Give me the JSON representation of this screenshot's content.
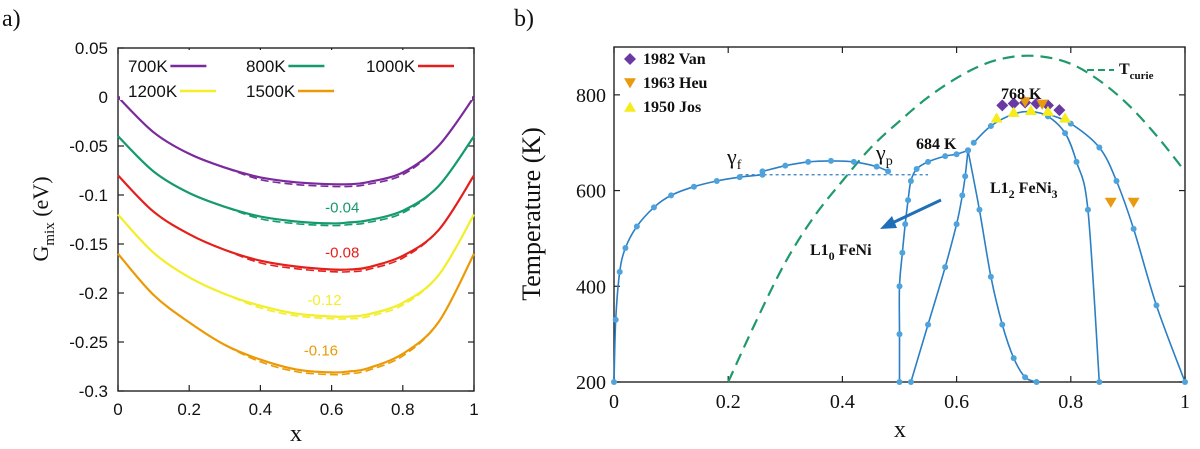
{
  "panels": {
    "a_label": "a)",
    "b_label": "b)"
  },
  "chart_data": [
    {
      "type": "line",
      "panel": "a",
      "xlabel": "x",
      "ylabel": "G",
      "ylabel_sub": "mix",
      "ylabel_unit": " (eV)",
      "xlim": [
        0,
        1
      ],
      "ylim": [
        -0.3,
        0.05
      ],
      "xticks": [
        0,
        0.2,
        0.4,
        0.6,
        0.8,
        1
      ],
      "xtick_labels": [
        "0",
        "0.2",
        "0.4",
        "0.6",
        "0.8",
        "1"
      ],
      "yticks": [
        0.05,
        0,
        -0.05,
        -0.1,
        -0.15,
        -0.2,
        -0.25,
        -0.3
      ],
      "ytick_labels": [
        "0.05",
        "0",
        "-0.05",
        "-0.1",
        "-0.15",
        "-0.2",
        "-0.25",
        "-0.3"
      ],
      "x": [
        0,
        0.1,
        0.2,
        0.3,
        0.4,
        0.5,
        0.6,
        0.65,
        0.7,
        0.8,
        0.9,
        1
      ],
      "series": [
        {
          "name": "700K",
          "color": "#7b2a9c",
          "offset": 0,
          "values": [
            0,
            -0.036,
            -0.058,
            -0.072,
            -0.082,
            -0.087,
            -0.089,
            -0.089,
            -0.087,
            -0.077,
            -0.05,
            0
          ]
        },
        {
          "name": "800K",
          "color": "#159a6e",
          "offset": -0.04,
          "values": [
            -0.04,
            -0.076,
            -0.098,
            -0.112,
            -0.122,
            -0.127,
            -0.129,
            -0.128,
            -0.126,
            -0.116,
            -0.091,
            -0.04
          ]
        },
        {
          "name": "1000K",
          "color": "#e4201c",
          "offset": -0.08,
          "values": [
            -0.08,
            -0.117,
            -0.14,
            -0.156,
            -0.167,
            -0.173,
            -0.176,
            -0.176,
            -0.174,
            -0.162,
            -0.136,
            -0.08
          ]
        },
        {
          "name": "1200K",
          "color": "#f2ee2a",
          "offset": -0.12,
          "values": [
            -0.12,
            -0.159,
            -0.184,
            -0.201,
            -0.213,
            -0.221,
            -0.224,
            -0.224,
            -0.222,
            -0.21,
            -0.182,
            -0.12
          ]
        },
        {
          "name": "1500K",
          "color": "#eb9a06",
          "offset": -0.16,
          "values": [
            -0.16,
            -0.202,
            -0.23,
            -0.253,
            -0.268,
            -0.278,
            -0.281,
            -0.28,
            -0.277,
            -0.262,
            -0.23,
            -0.16
          ]
        }
      ],
      "offset_labels": [
        {
          "text": "-0.04",
          "x": 0.63,
          "y": -0.118,
          "color": "#159a6e"
        },
        {
          "text": "-0.08",
          "x": 0.63,
          "y": -0.164,
          "color": "#e4201c"
        },
        {
          "text": "-0.12",
          "x": 0.58,
          "y": -0.212,
          "color": "#f2ee2a"
        },
        {
          "text": "-0.16",
          "x": 0.57,
          "y": -0.264,
          "color": "#eb9a06"
        }
      ],
      "legend_position": "top"
    },
    {
      "type": "line",
      "panel": "b",
      "xlabel": "x",
      "ylabel": "Temperature (K)",
      "xlim": [
        0,
        1
      ],
      "ylim": [
        200,
        900
      ],
      "xticks": [
        0,
        0.2,
        0.4,
        0.6,
        0.8,
        1
      ],
      "xtick_labels": [
        "0",
        "0.2",
        "0.4",
        "0.6",
        "0.8",
        "1"
      ],
      "yticks": [
        200,
        400,
        600,
        800
      ],
      "ytick_labels": [
        "200",
        "400",
        "600",
        "800"
      ],
      "line_color": "#2b7fc4",
      "curie_color": "#1f9a6a",
      "series": [
        {
          "name": "gamma_f boundary",
          "x": [
            0.0,
            0.003,
            0.01,
            0.02,
            0.04,
            0.07,
            0.1,
            0.14,
            0.18,
            0.22,
            0.26
          ],
          "y": [
            200,
            330,
            430,
            480,
            525,
            565,
            590,
            608,
            620,
            628,
            633
          ]
        },
        {
          "name": "miscibility dome",
          "x": [
            0.26,
            0.3,
            0.34,
            0.38,
            0.42,
            0.46,
            0.48
          ],
          "y": [
            640,
            652,
            660,
            662,
            660,
            650,
            640
          ]
        },
        {
          "name": "L1_0 left",
          "x": [
            0.5,
            0.5,
            0.5,
            0.505,
            0.51,
            0.515,
            0.52,
            0.53,
            0.55,
            0.58,
            0.6,
            0.62
          ],
          "y": [
            200,
            300,
            400,
            470,
            530,
            580,
            620,
            645,
            660,
            672,
            676,
            684
          ]
        },
        {
          "name": "L1_0 right",
          "x": [
            0.52,
            0.55,
            0.58,
            0.6,
            0.61,
            0.615,
            0.62
          ],
          "y": [
            200,
            320,
            440,
            530,
            590,
            630,
            684
          ]
        },
        {
          "name": "L1_2 left",
          "x": [
            0.62,
            0.64,
            0.66,
            0.68,
            0.7,
            0.72,
            0.74
          ],
          "y": [
            684,
            560,
            420,
            320,
            250,
            210,
            200
          ]
        },
        {
          "name": "L1_2 right",
          "x": [
            0.63,
            0.66,
            0.7,
            0.73,
            0.76,
            0.79,
            0.81,
            0.83,
            0.85
          ],
          "y": [
            700,
            735,
            760,
            765,
            755,
            720,
            660,
            560,
            200
          ]
        },
        {
          "name": "L1_2 outer",
          "x": [
            0.76,
            0.8,
            0.85,
            0.88,
            0.91,
            0.95,
            1.0
          ],
          "y": [
            760,
            740,
            690,
            620,
            520,
            360,
            200
          ]
        }
      ],
      "tie_line": {
        "x": [
          0.22,
          0.55
        ],
        "y": [
          633,
          633
        ]
      },
      "t_curie": {
        "x": [
          0.2,
          0.25,
          0.3,
          0.35,
          0.4,
          0.45,
          0.5,
          0.55,
          0.6,
          0.65,
          0.7,
          0.75,
          0.8,
          0.85,
          0.9,
          0.95,
          1.0
        ],
        "y": [
          200,
          330,
          450,
          545,
          620,
          690,
          745,
          795,
          835,
          865,
          880,
          880,
          865,
          830,
          780,
          715,
          640
        ]
      },
      "experiments": [
        {
          "name": "1982 Van",
          "color": "#6a3aa4",
          "marker": "diamond",
          "points": [
            [
              0.68,
              778
            ],
            [
              0.7,
              782
            ],
            [
              0.72,
              784
            ],
            [
              0.74,
              782
            ],
            [
              0.76,
              778
            ],
            [
              0.78,
              768
            ]
          ]
        },
        {
          "name": "1963 Heu",
          "color": "#e89a10",
          "marker": "triangle-down",
          "points": [
            [
              0.72,
              785
            ],
            [
              0.75,
              780
            ],
            [
              0.87,
              575
            ],
            [
              0.91,
              575
            ]
          ]
        },
        {
          "name": "1950 Jos",
          "color": "#f6ec1c",
          "marker": "triangle-up",
          "points": [
            [
              0.67,
              752
            ],
            [
              0.7,
              764
            ],
            [
              0.73,
              768
            ],
            [
              0.76,
              766
            ],
            [
              0.79,
              752
            ]
          ]
        }
      ],
      "annotations": {
        "gamma_f": "γ",
        "gamma_f_sub": "f",
        "gamma_p": "γ",
        "gamma_p_sub": "p",
        "t684": "684 K",
        "t768": "768 K",
        "l12": "L1",
        "l12_sub": "2",
        "l12_phase": " FeNi",
        "l12_sub2": "3",
        "l10": "L1",
        "l10_sub": "0",
        "l10_phase": " FeNi",
        "tcurie": "T",
        "tcurie_sub": "curie"
      },
      "legend_position": "top-left"
    }
  ]
}
